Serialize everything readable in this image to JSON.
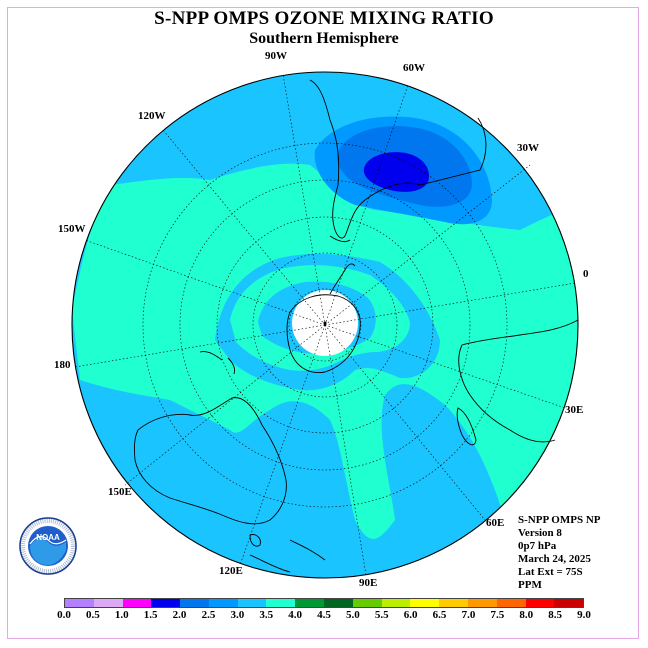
{
  "header": {
    "title": "S-NPP OMPS OZONE MIXING RATIO",
    "subtitle": "Southern Hemisphere"
  },
  "map": {
    "projection": "south polar stereographic",
    "longitude_labels": [
      "90W",
      "60W",
      "30W",
      "0",
      "30E",
      "60E",
      "90E",
      "120E",
      "150E",
      "180",
      "150W",
      "120W"
    ],
    "latitude_circles": [
      -80,
      -70,
      -60,
      -50,
      -40,
      -30
    ],
    "fill_colors": {
      "2.0": "#0000ee",
      "2.5": "#0077ee",
      "3.0": "#0099ff",
      "3.5": "#19c4ff",
      "4.0": "#20ffcf"
    },
    "polar_no_data": true
  },
  "info": {
    "lines": [
      "S-NPP OMPS NP",
      "Version 8",
      "0p7 hPa",
      "March 24, 2025",
      "Lat Ext = 75S",
      "PPM"
    ]
  },
  "colorbar": {
    "tick_labels": [
      "0.0",
      "0.5",
      "1.0",
      "1.5",
      "2.0",
      "2.5",
      "3.0",
      "3.5",
      "4.0",
      "4.5",
      "5.0",
      "5.5",
      "6.0",
      "6.5",
      "7.0",
      "7.5",
      "8.0",
      "8.5",
      "9.0"
    ],
    "colors": [
      "#b380ff",
      "#dca9f5",
      "#ff00ff",
      "#0000ee",
      "#0077ee",
      "#0099ff",
      "#19c4ff",
      "#20ffcf",
      "#009933",
      "#006622",
      "#66cc00",
      "#bbee00",
      "#ffff00",
      "#ffcc00",
      "#ff9900",
      "#ff6600",
      "#ff0000",
      "#cc0000",
      "#8b5a3c"
    ]
  },
  "logo": {
    "text": "NOAA",
    "ring_text": "NATIONAL OCEANIC AND ATMOSPHERIC ADMINISTRATION · U.S. DEPARTMENT OF COMMERCE"
  }
}
